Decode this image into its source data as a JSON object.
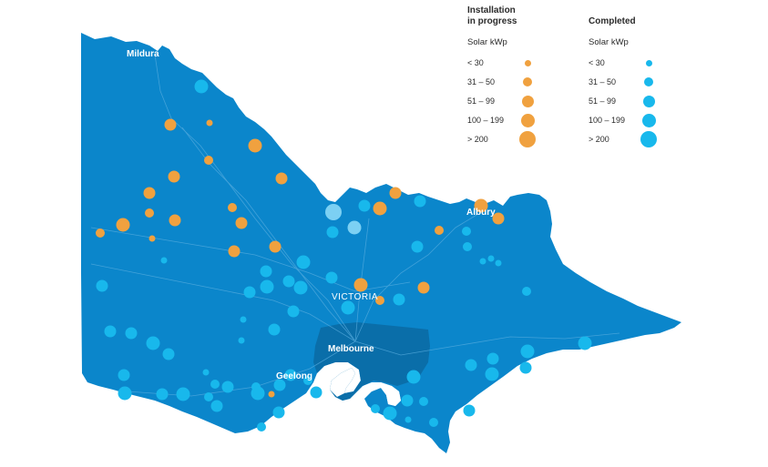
{
  "colors": {
    "land": "#0b86cb",
    "metro": "#0a6ea9",
    "road": "#5aaee0",
    "border": "#ffffff",
    "in_progress": "#f0a13f",
    "completed": "#18b8ec",
    "completed_large": "#7cd0f3"
  },
  "state_label": "VICTORIA",
  "cities": [
    {
      "name": "Mildura"
    },
    {
      "name": "Albury"
    },
    {
      "name": "Melbourne"
    },
    {
      "name": "Geelong"
    }
  ],
  "legend": {
    "in_progress": {
      "title_line1": "Installation",
      "title_line2": "in progress",
      "subtitle": "Solar kWp",
      "items": [
        {
          "label": "< 30",
          "size": 1
        },
        {
          "label": "31 – 50",
          "size": 2
        },
        {
          "label": "51 – 99",
          "size": 3
        },
        {
          "label": "100 – 199",
          "size": 4
        },
        {
          "label": "> 200",
          "size": 5
        }
      ]
    },
    "completed": {
      "title": "Completed",
      "subtitle": "Solar kWp",
      "items": [
        {
          "label": "< 30",
          "size": 1
        },
        {
          "label": "31 – 50",
          "size": 2
        },
        {
          "label": "51 – 99",
          "size": 3
        },
        {
          "label": "100 – 199",
          "size": 4
        },
        {
          "label": "> 200",
          "size": 5
        }
      ]
    }
  }
}
